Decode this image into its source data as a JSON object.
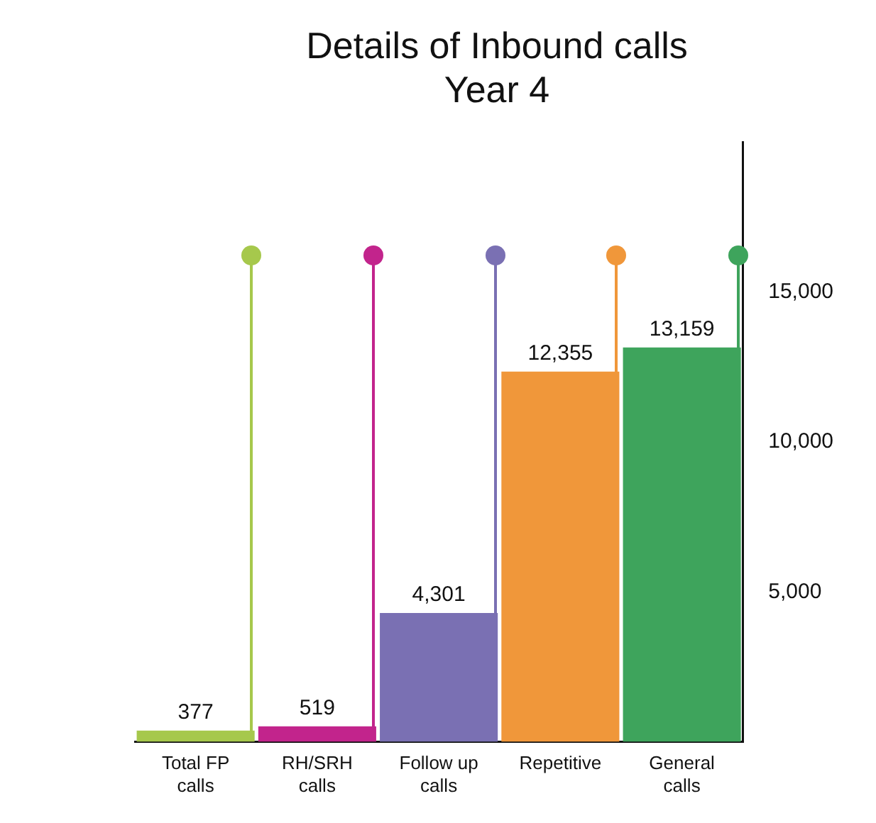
{
  "chart_data": {
    "type": "bar",
    "title": "Details of Inbound calls",
    "subtitle": "Year 4",
    "categories": [
      "Total FP calls",
      "RH/SRH calls",
      "Follow up calls",
      "Repetitive",
      "General calls"
    ],
    "values": [
      377,
      519,
      4301,
      12355,
      13159
    ],
    "colors": [
      "#a6c84c",
      "#c2248c",
      "#7a70b3",
      "#f0973a",
      "#3ea45c"
    ],
    "value_labels": [
      "377",
      "519",
      "4,301",
      "12,355",
      "13,159"
    ],
    "ylim": [
      0,
      20000
    ],
    "yticks": [
      {
        "value": 5000,
        "label": "5,000"
      },
      {
        "value": 10000,
        "label": "10,000"
      },
      {
        "value": 15000,
        "label": "15,000"
      }
    ],
    "grid": false,
    "legend": false
  }
}
